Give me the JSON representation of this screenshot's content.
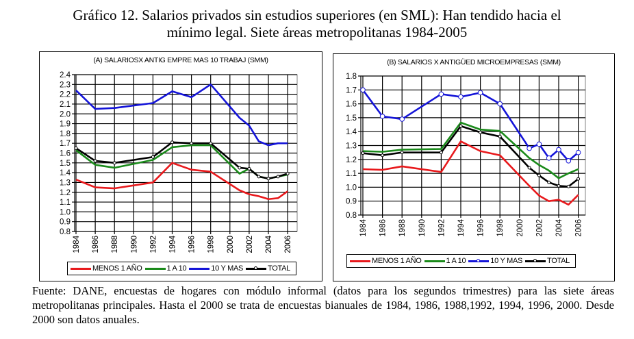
{
  "title_line1": "Gráfico 12. Salarios privados sin estudios superiores (en SML): Han tendido hacia el",
  "title_line2": "mínimo legal. Siete áreas metropolitanas  1984-2005",
  "source_text": "Fuente: DANE, encuestas de hogares con módulo informal (datos para los segundos trimestres) para las siete áreas metropolitanas principales. Hasta el 2000 se trata de encuestas bianuales de 1984, 1986, 1988,1992, 1994, 1996, 2000. Desde 2000 son datos anuales.",
  "chart_data": [
    {
      "type": "line",
      "title": "(A) SALARIOSX ANTIG  EMPRE MAS 10 TRABAJ (SMM)",
      "xlabel": "",
      "ylabel": "",
      "ylim": [
        0.8,
        2.4
      ],
      "yticks": [
        "0.8",
        "0.9",
        "1.0",
        "1.1",
        "1.2",
        "1.3",
        "1.4",
        "1.5",
        "1.6",
        "1.7",
        "1.8",
        "1.9",
        "2.0",
        "2.1",
        "2.2",
        "2.3",
        "2.4"
      ],
      "xticks": [
        "1984",
        "1986",
        "1988",
        "1990",
        "1992",
        "1994",
        "1996",
        "1998",
        "2000",
        "2002",
        "2004",
        "2006"
      ],
      "grid": true,
      "legend_position": "bottom",
      "x": [
        1984,
        1986,
        1988,
        1992,
        1994,
        1996,
        1998,
        2001,
        2002,
        2003,
        2004,
        2005,
        2006
      ],
      "series": [
        {
          "name": "MENOS 1 AÑO",
          "color": "#e8191c",
          "markers": false,
          "values": [
            1.33,
            1.25,
            1.24,
            1.3,
            1.5,
            1.43,
            1.41,
            1.22,
            1.18,
            1.16,
            1.13,
            1.14,
            1.21
          ]
        },
        {
          "name": "1 A 10",
          "color": "#1a8a1a",
          "markers": false,
          "values": [
            1.63,
            1.48,
            1.45,
            1.53,
            1.66,
            1.68,
            1.68,
            1.39,
            1.44,
            1.36,
            1.34,
            1.36,
            1.38
          ]
        },
        {
          "name": "10 Y MAS",
          "color": "#1414d8",
          "markers": false,
          "values": [
            2.24,
            2.05,
            2.06,
            2.11,
            2.23,
            2.17,
            2.3,
            1.96,
            1.88,
            1.72,
            1.68,
            1.7,
            1.7
          ]
        },
        {
          "name": "TOTAL",
          "color": "#000000",
          "markers": true,
          "values": [
            1.65,
            1.52,
            1.5,
            1.56,
            1.71,
            1.7,
            1.7,
            1.45,
            1.44,
            1.36,
            1.34,
            1.36,
            1.39
          ]
        }
      ]
    },
    {
      "type": "line",
      "title": "(B) SALARIOS X ANTIGÜED MICROEMPRESAS (SMM)",
      "xlabel": "",
      "ylabel": "",
      "ylim": [
        0.8,
        1.8
      ],
      "yticks": [
        "0.8",
        "0.9",
        "1.0",
        "1.1",
        "1.2",
        "1.3",
        "1.4",
        "1.5",
        "1.6",
        "1.7",
        "1.8"
      ],
      "xticks": [
        "1984",
        "1986",
        "1988",
        "1990",
        "1992",
        "1994",
        "1996",
        "1998",
        "2000",
        "2002",
        "2004",
        "2006"
      ],
      "grid": true,
      "legend_position": "bottom",
      "x": [
        1984,
        1986,
        1988,
        1992,
        1994,
        1996,
        1998,
        2001,
        2002,
        2003,
        2004,
        2005,
        2006
      ],
      "series": [
        {
          "name": "MENOS 1 AÑO",
          "color": "#e8191c",
          "markers": false,
          "values": [
            1.13,
            1.125,
            1.15,
            1.11,
            1.33,
            1.26,
            1.23,
            1.01,
            0.94,
            0.9,
            0.91,
            0.875,
            0.945
          ]
        },
        {
          "name": "1 A 10",
          "color": "#1a8a1a",
          "markers": false,
          "values": [
            1.26,
            1.255,
            1.27,
            1.275,
            1.465,
            1.415,
            1.405,
            1.21,
            1.16,
            1.12,
            1.065,
            1.1,
            1.13
          ]
        },
        {
          "name": "10 Y MAS",
          "color": "#1414d8",
          "markers": true,
          "values": [
            1.7,
            1.51,
            1.49,
            1.67,
            1.65,
            1.68,
            1.6,
            1.28,
            1.31,
            1.21,
            1.27,
            1.19,
            1.25
          ]
        },
        {
          "name": "TOTAL",
          "color": "#000000",
          "markers": true,
          "values": [
            1.245,
            1.23,
            1.25,
            1.25,
            1.44,
            1.395,
            1.365,
            1.14,
            1.085,
            1.035,
            1.01,
            1.005,
            1.06
          ]
        }
      ]
    }
  ]
}
